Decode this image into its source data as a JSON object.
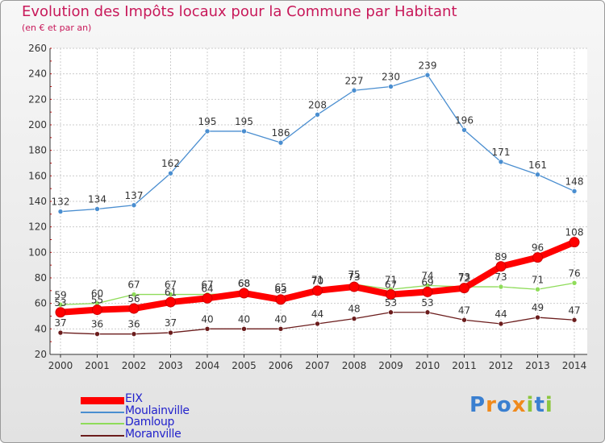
{
  "title": "Evolution des Impôts locaux pour la Commune par Habitant",
  "subtitle": "(en € et par an)",
  "logo": {
    "text": "Proxiti",
    "letters": [
      "P",
      "r",
      "o",
      "x",
      "i",
      "t",
      "i"
    ],
    "colors": [
      "#3a7fd0",
      "#f08a1c",
      "#3a7fd0",
      "#f08a1c",
      "#8cc63e",
      "#3a7fd0",
      "#8cc63e"
    ]
  },
  "chart_data": {
    "type": "line",
    "title": "Evolution des Impôts locaux pour la Commune par Habitant",
    "subtitle": "(en € et par an)",
    "xlabel": "",
    "ylabel": "",
    "categories": [
      "2000",
      "2001",
      "2002",
      "2003",
      "2004",
      "2005",
      "2006",
      "2007",
      "2008",
      "2009",
      "2010",
      "2011",
      "2012",
      "2013",
      "2014"
    ],
    "ylim": [
      20,
      260
    ],
    "yticks": [
      20,
      40,
      60,
      80,
      100,
      120,
      140,
      160,
      180,
      200,
      220,
      240,
      260
    ],
    "grid": true,
    "legend_position": "bottom-left",
    "series": [
      {
        "name": "EIX",
        "color": "#ff0000",
        "values": [
          53,
          55,
          56,
          61,
          64,
          68,
          63,
          70,
          73,
          67,
          69,
          72,
          89,
          96,
          108
        ]
      },
      {
        "name": "Moulainville",
        "color": "#4a8ed0",
        "values": [
          132,
          134,
          137,
          162,
          195,
          195,
          186,
          208,
          227,
          230,
          239,
          196,
          171,
          161,
          148
        ]
      },
      {
        "name": "Damloup",
        "color": "#8fdc5a",
        "values": [
          59,
          60,
          67,
          67,
          67,
          68,
          65,
          71,
          75,
          71,
          74,
          73,
          73,
          71,
          76
        ]
      },
      {
        "name": "Moranville",
        "color": "#6b1c1c",
        "values": [
          37,
          36,
          36,
          37,
          40,
          40,
          40,
          44,
          48,
          53,
          53,
          47,
          44,
          49,
          47
        ]
      }
    ]
  }
}
